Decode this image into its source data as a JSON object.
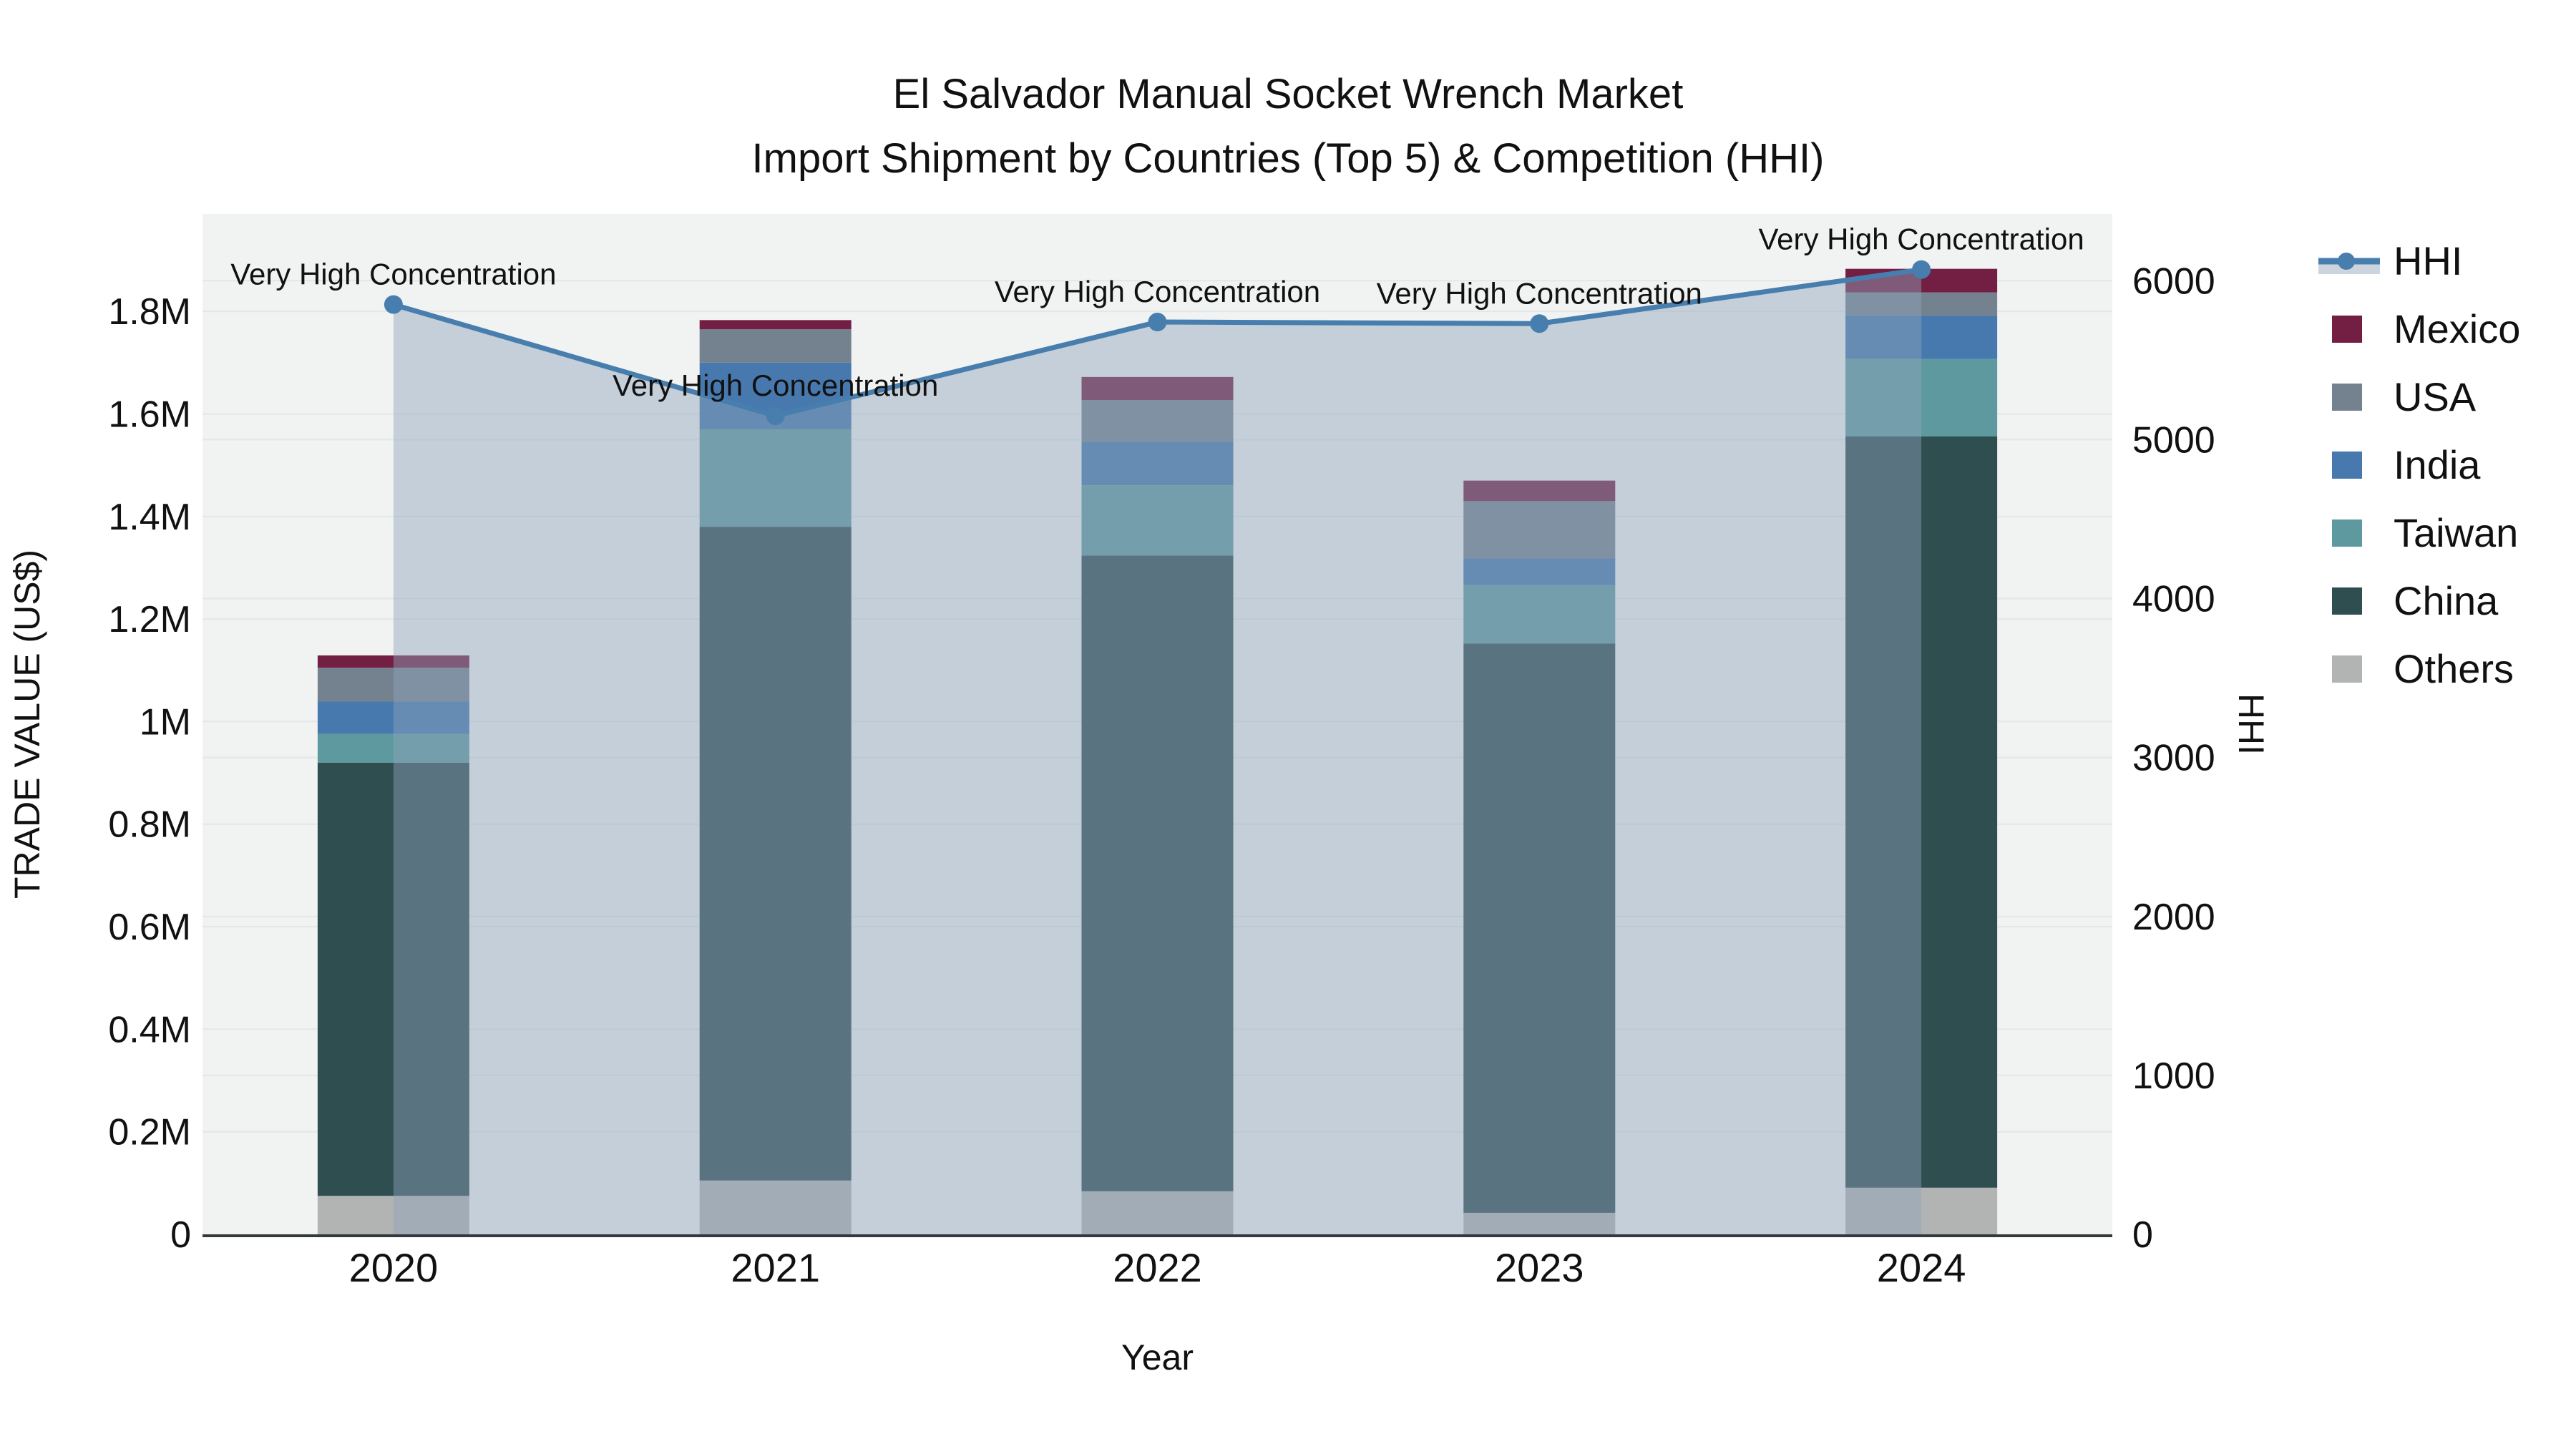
{
  "title": {
    "line1": "El Salvador Manual Socket Wrench Market",
    "line2": "Import Shipment by Countries (Top 5) & Competition (HHI)"
  },
  "axes": {
    "x": {
      "title": "Year",
      "categories": [
        "2020",
        "2021",
        "2022",
        "2023",
        "2024"
      ]
    },
    "y_left": {
      "title": "TRADE VALUE (US$)",
      "tick_labels": [
        "0",
        "0.2M",
        "0.4M",
        "0.6M",
        "0.8M",
        "1M",
        "1.2M",
        "1.4M",
        "1.6M",
        "1.8M"
      ],
      "tick_values": [
        0,
        200000,
        400000,
        600000,
        800000,
        1000000,
        1200000,
        1400000,
        1600000,
        1800000
      ]
    },
    "y_right": {
      "title": "HHI",
      "tick_labels": [
        "0",
        "1000",
        "2000",
        "3000",
        "4000",
        "5000",
        "6000"
      ],
      "tick_values": [
        0,
        1000,
        2000,
        3000,
        4000,
        5000,
        6000
      ]
    }
  },
  "legend": {
    "items": [
      {
        "label": "HHI",
        "type": "line",
        "color": "#477eae",
        "fill": "#ccd4de"
      },
      {
        "label": "Mexico",
        "type": "swatch",
        "color": "#731f44"
      },
      {
        "label": "USA",
        "type": "swatch",
        "color": "#74818e"
      },
      {
        "label": "India",
        "type": "swatch",
        "color": "#4779ae"
      },
      {
        "label": "Taiwan",
        "type": "swatch",
        "color": "#5f99a0"
      },
      {
        "label": "China",
        "type": "swatch",
        "color": "#2f4e50"
      },
      {
        "label": "Others",
        "type": "swatch",
        "color": "#b2b3b3"
      }
    ]
  },
  "annotations": [
    {
      "category": "2020",
      "text": "Very High Concentration"
    },
    {
      "category": "2021",
      "text": "Very High Concentration"
    },
    {
      "category": "2022",
      "text": "Very High Concentration"
    },
    {
      "category": "2023",
      "text": "Very High Concentration"
    },
    {
      "category": "2024",
      "text": "Very High Concentration"
    }
  ],
  "colors": {
    "figure_bg": "#ffffff",
    "plot_bg": "#f1f2f2",
    "grid": "#e4e7e7",
    "axis_line": "#36393c",
    "text": "#111111"
  },
  "chart_data": {
    "type": "bar",
    "subtype": "stacked-bars-with-line-overlay",
    "title": "El Salvador Manual Socket Wrench Market — Import Shipment by Countries (Top 5) & Competition (HHI)",
    "categories": [
      "2020",
      "2021",
      "2022",
      "2023",
      "2024"
    ],
    "xlabel": "Year",
    "ylabel": "TRADE VALUE (US$)",
    "ylabel_right": "HHI",
    "stack_order_bottom_to_top": [
      "Others",
      "China",
      "Taiwan",
      "India",
      "USA",
      "Mexico"
    ],
    "series": [
      {
        "name": "Others",
        "axis": "left",
        "color": "#b2b3b3",
        "values": [
          75000,
          105000,
          84000,
          42000,
          91000
        ]
      },
      {
        "name": "China",
        "axis": "left",
        "color": "#2f4e50",
        "values": [
          845000,
          1275000,
          1240000,
          1110000,
          1465000
        ]
      },
      {
        "name": "Taiwan",
        "axis": "left",
        "color": "#5f99a0",
        "values": [
          56000,
          190000,
          137000,
          114000,
          151000
        ]
      },
      {
        "name": "India",
        "axis": "left",
        "color": "#4779ae",
        "values": [
          63000,
          130000,
          85000,
          52000,
          85000
        ]
      },
      {
        "name": "USA",
        "axis": "left",
        "color": "#74818e",
        "values": [
          66000,
          65000,
          81000,
          112000,
          45000
        ]
      },
      {
        "name": "Mexico",
        "axis": "left",
        "color": "#731f44",
        "values": [
          24000,
          18000,
          45000,
          40000,
          46000
        ]
      }
    ],
    "bar_totals": [
      1129000,
      1783000,
      1672000,
      1470000,
      1883000
    ],
    "line_series": {
      "name": "HHI",
      "axis": "right",
      "color": "#477eae",
      "area_fill": "rgba(143,163,186,0.45)",
      "values": [
        5850,
        5150,
        5740,
        5730,
        6070
      ]
    },
    "ylim_left": [
      0,
      1990000
    ],
    "ylim_right": [
      0,
      6420
    ],
    "grid": "horizontal-both-axes",
    "legend_position": "right"
  }
}
